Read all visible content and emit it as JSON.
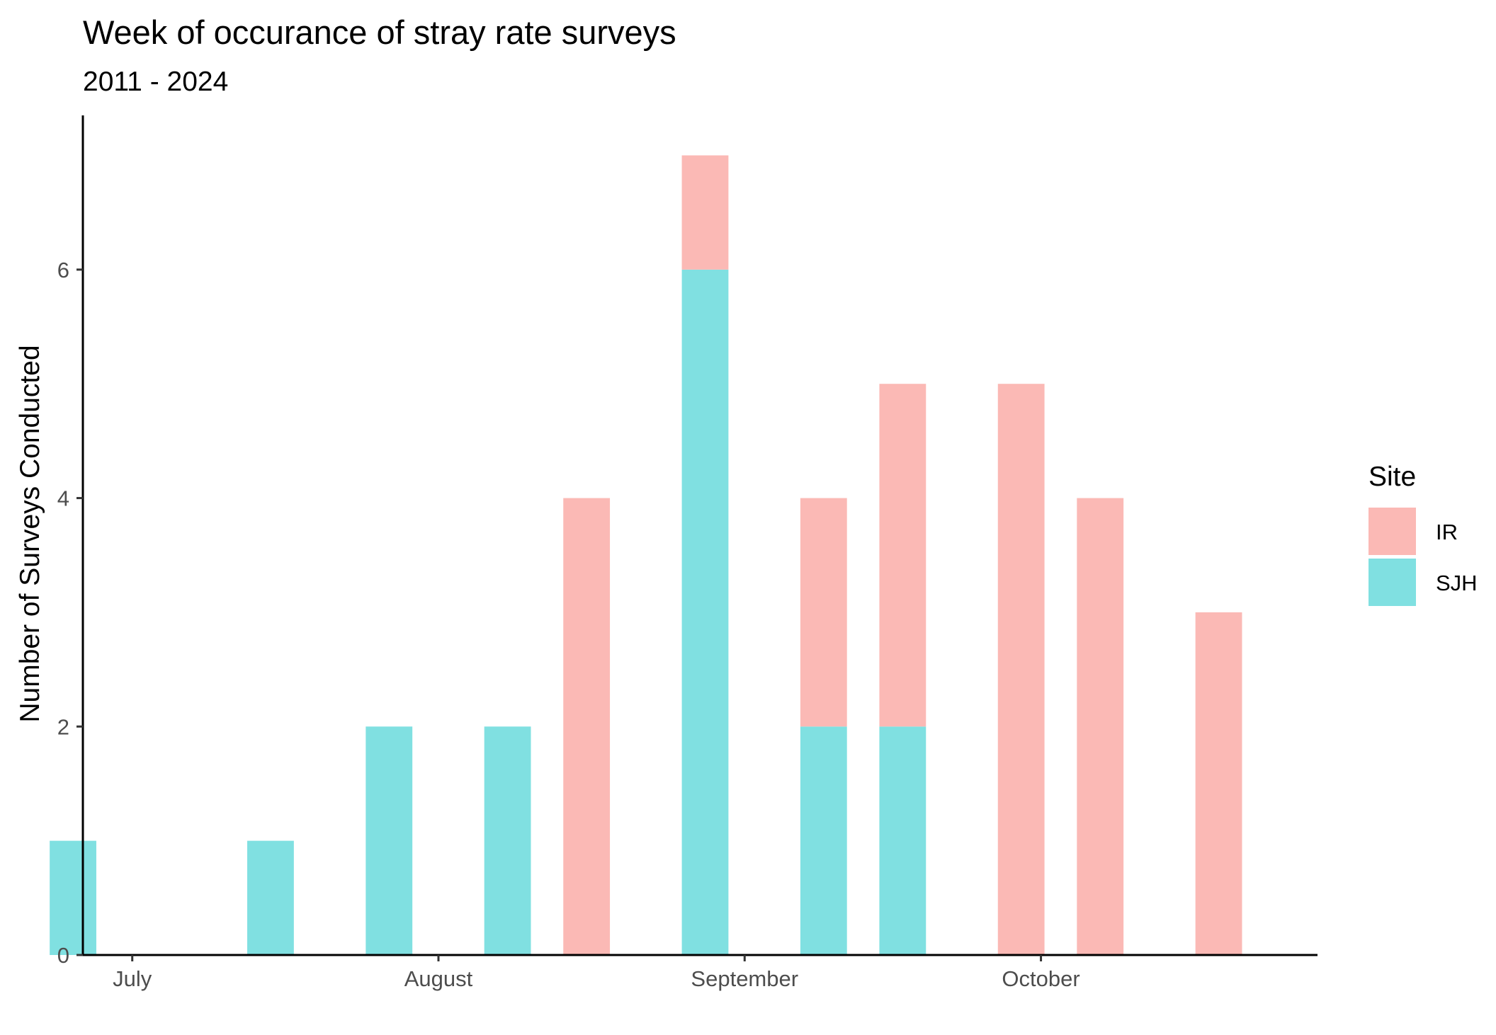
{
  "chart_data": {
    "type": "bar",
    "stacked": true,
    "title": "Week of occurance of stray rate surveys",
    "subtitle": "2011 - 2024",
    "xlabel": "",
    "ylabel": "Number of Surveys Conducted",
    "x_axis": {
      "type": "date",
      "domain": [
        "2000-06-26",
        "2000-10-29"
      ],
      "ticks": [
        {
          "date": "2000-07-01",
          "label": "July"
        },
        {
          "date": "2000-08-01",
          "label": "August"
        },
        {
          "date": "2000-09-01",
          "label": "September"
        },
        {
          "date": "2000-10-01",
          "label": "October"
        }
      ]
    },
    "y_axis": {
      "ylim": [
        0,
        7.35
      ],
      "ticks": [
        0,
        2,
        4,
        6
      ]
    },
    "grid": false,
    "legend": {
      "title": "Site",
      "position": "right",
      "entries": [
        {
          "name": "IR",
          "color": "#FBB9B5"
        },
        {
          "name": "SJH",
          "color": "#80E0E1"
        }
      ]
    },
    "bars": [
      {
        "date": "2000-06-25",
        "SJH": 1,
        "IR": 0
      },
      {
        "date": "2000-07-15",
        "SJH": 1,
        "IR": 0
      },
      {
        "date": "2000-07-27",
        "SJH": 2,
        "IR": 0
      },
      {
        "date": "2000-08-08",
        "SJH": 2,
        "IR": 0
      },
      {
        "date": "2000-08-16",
        "SJH": 0,
        "IR": 4
      },
      {
        "date": "2000-08-28",
        "SJH": 6,
        "IR": 1
      },
      {
        "date": "2000-09-09",
        "SJH": 2,
        "IR": 2
      },
      {
        "date": "2000-09-17",
        "SJH": 2,
        "IR": 3
      },
      {
        "date": "2000-09-29",
        "SJH": 0,
        "IR": 5
      },
      {
        "date": "2000-10-07",
        "SJH": 0,
        "IR": 4
      },
      {
        "date": "2000-10-19",
        "SJH": 0,
        "IR": 3
      }
    ]
  }
}
